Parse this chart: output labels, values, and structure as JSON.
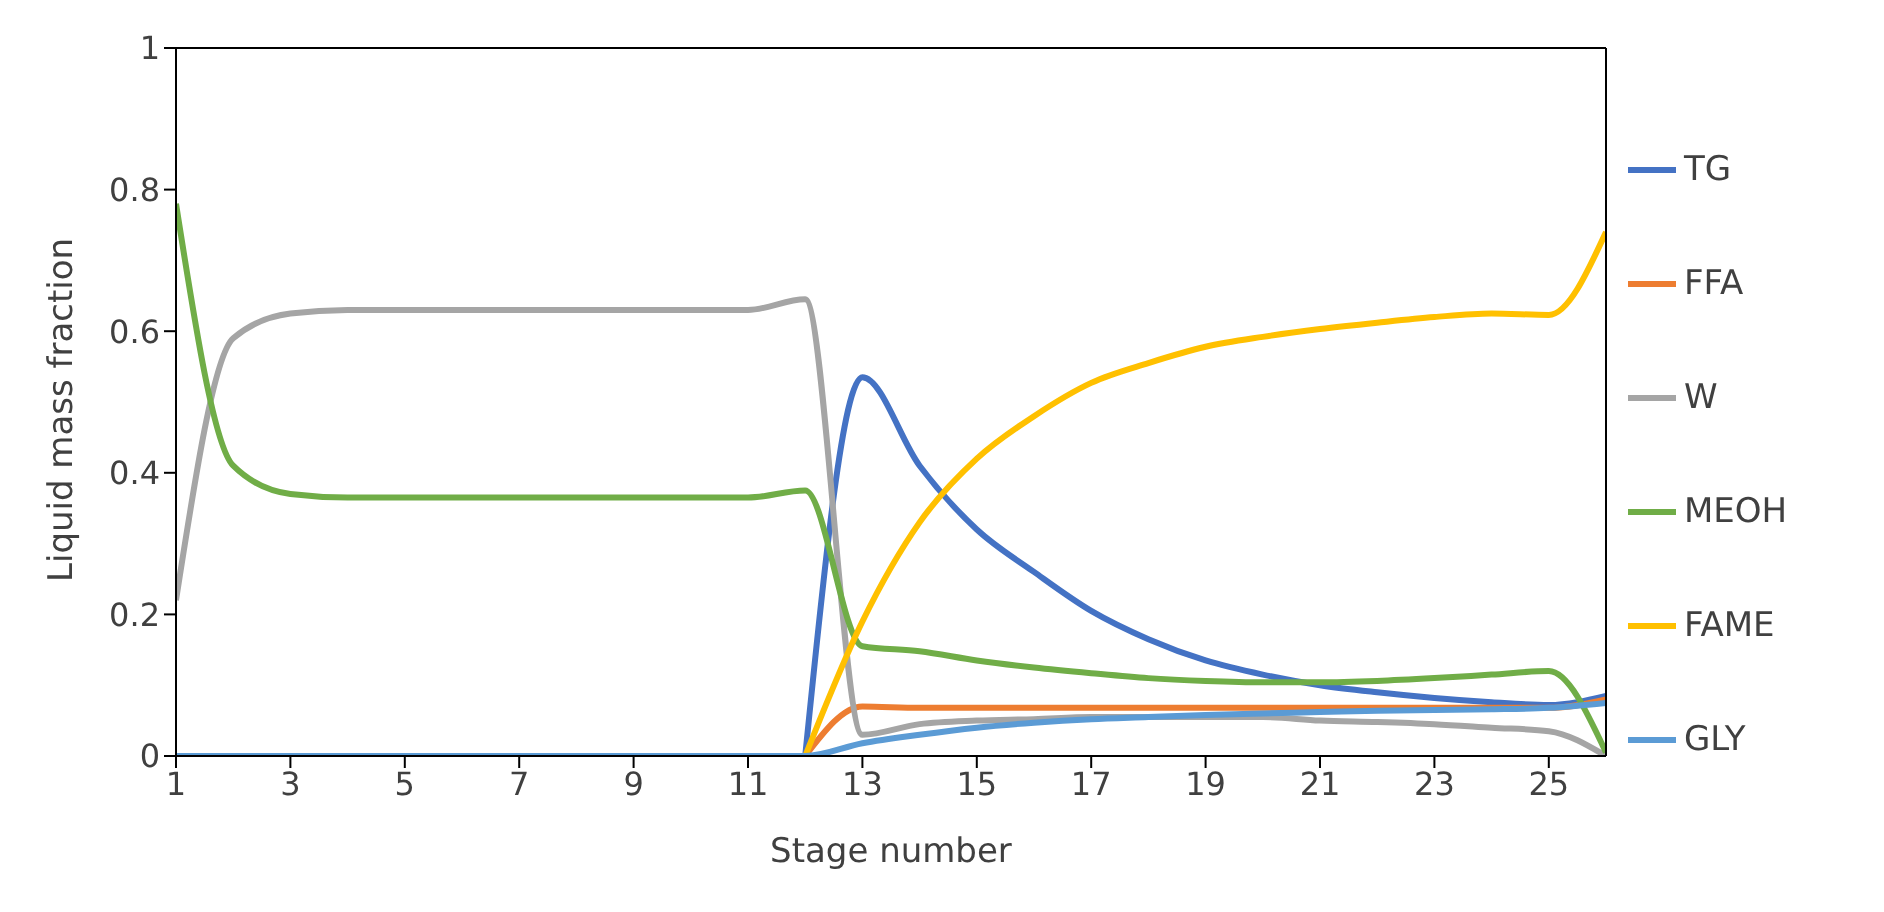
{
  "chart_data": {
    "type": "line",
    "xlabel": "Stage number",
    "ylabel": "Liquid mass fraction",
    "x": [
      1,
      2,
      3,
      4,
      5,
      6,
      7,
      8,
      9,
      10,
      11,
      12,
      13,
      14,
      15,
      16,
      17,
      18,
      19,
      20,
      21,
      22,
      23,
      24,
      25,
      26
    ],
    "xlim": [
      1,
      26
    ],
    "xticks": [
      1,
      3,
      5,
      7,
      9,
      11,
      13,
      15,
      17,
      19,
      21,
      23,
      25
    ],
    "ylim": [
      0,
      1
    ],
    "yticks": [
      0,
      0.2,
      0.4,
      0.6,
      0.8,
      1
    ],
    "grid": false,
    "legend": "right",
    "marker": "none",
    "line_style": "solid",
    "series": [
      {
        "name": "TG",
        "color": "#4472c4",
        "values": [
          null,
          null,
          null,
          null,
          null,
          null,
          null,
          null,
          null,
          null,
          null,
          0,
          0.535,
          0.41,
          0.32,
          0.26,
          0.205,
          0.165,
          0.135,
          0.115,
          0.1,
          0.09,
          0.082,
          0.076,
          0.072,
          0.085
        ]
      },
      {
        "name": "FFA",
        "color": "#ed7d31",
        "values": [
          null,
          null,
          null,
          null,
          null,
          null,
          null,
          null,
          null,
          null,
          null,
          0,
          0.07,
          0.068,
          0.068,
          0.068,
          0.068,
          0.068,
          0.068,
          0.068,
          0.068,
          0.068,
          0.068,
          0.068,
          0.068,
          0.08
        ]
      },
      {
        "name": "W",
        "color": "#a5a5a5",
        "values": [
          0.22,
          0.59,
          0.625,
          0.63,
          0.63,
          0.63,
          0.63,
          0.63,
          0.63,
          0.63,
          0.63,
          0.645,
          0.03,
          0.045,
          0.05,
          0.052,
          0.055,
          0.055,
          0.055,
          0.055,
          0.05,
          0.048,
          0.045,
          0.04,
          0.035,
          0
        ]
      },
      {
        "name": "MEOH",
        "color": "#70ad47",
        "values": [
          0.78,
          0.41,
          0.37,
          0.365,
          0.365,
          0.365,
          0.365,
          0.365,
          0.365,
          0.365,
          0.365,
          0.375,
          0.155,
          0.148,
          0.135,
          0.125,
          0.117,
          0.11,
          0.106,
          0.104,
          0.104,
          0.106,
          0.11,
          0.115,
          0.12,
          0.005
        ]
      },
      {
        "name": "FAME",
        "color": "#ffc000",
        "values": [
          null,
          null,
          null,
          null,
          null,
          null,
          null,
          null,
          null,
          null,
          null,
          0,
          0.19,
          0.33,
          0.42,
          0.48,
          0.527,
          0.555,
          0.578,
          0.592,
          0.603,
          0.612,
          0.62,
          0.625,
          0.623,
          0.74
        ]
      },
      {
        "name": "GLY",
        "color": "#5b9bd5",
        "values": [
          0,
          0,
          0,
          0,
          0,
          0,
          0,
          0,
          0,
          0,
          0,
          0,
          0.018,
          0.03,
          0.04,
          0.047,
          0.052,
          0.055,
          0.058,
          0.06,
          0.062,
          0.064,
          0.065,
          0.066,
          0.068,
          0.075
        ]
      }
    ]
  }
}
